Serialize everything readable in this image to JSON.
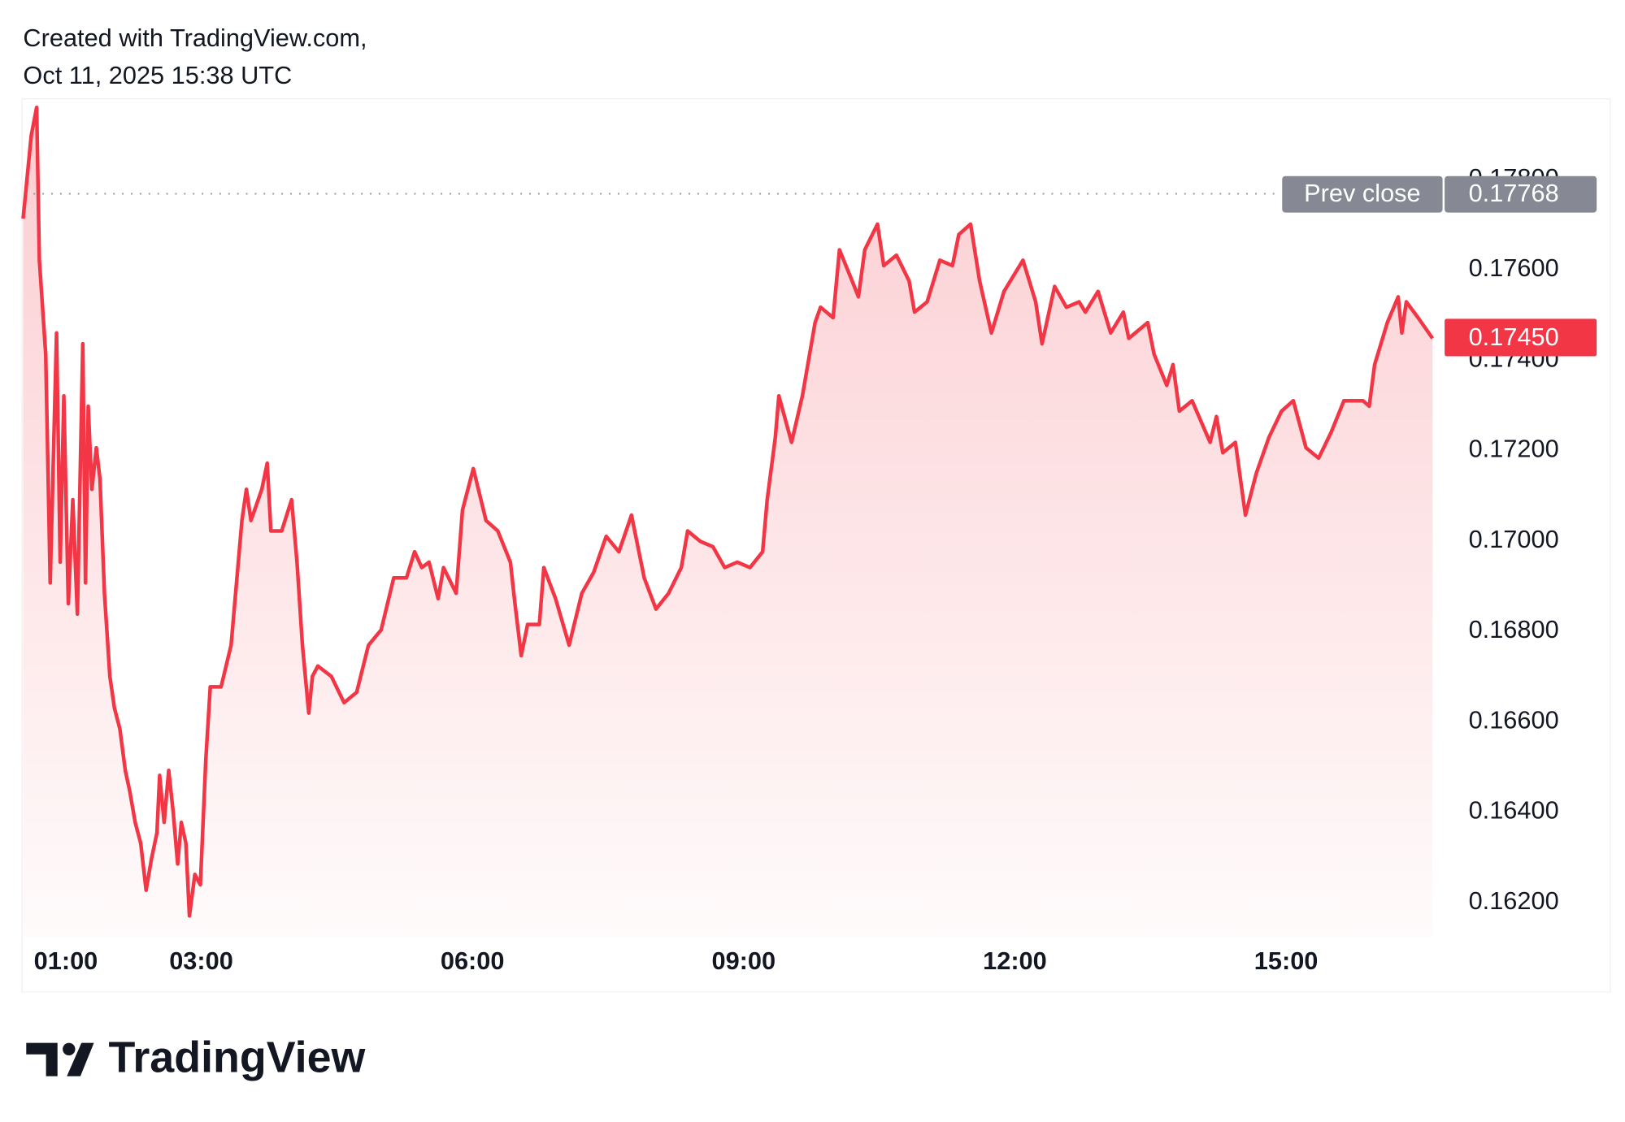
{
  "chart_data": {
    "type": "line",
    "header": [
      "Created with TradingView.com,",
      "Oct 11, 2025 15:38 UTC"
    ],
    "brand": "TradingView",
    "color": "#f23645",
    "x": [
      1.03,
      1.12,
      1.18,
      1.21,
      1.28,
      1.33,
      1.4,
      1.44,
      1.48,
      1.53,
      1.58,
      1.63,
      1.69,
      1.72,
      1.75,
      1.79,
      1.84,
      1.88,
      1.93,
      1.99,
      2.04,
      2.1,
      2.16,
      2.21,
      2.27,
      2.33,
      2.39,
      2.45,
      2.51,
      2.54,
      2.59,
      2.64,
      2.69,
      2.74,
      2.78,
      2.83,
      2.87,
      2.93,
      2.99,
      3.05,
      3.1,
      3.22,
      3.33,
      3.39,
      3.45,
      3.5,
      3.55,
      3.67,
      3.73,
      3.77,
      3.89,
      4.0,
      4.06,
      4.12,
      4.19,
      4.23,
      4.29,
      4.44,
      4.58,
      4.72,
      4.85,
      4.99,
      5.13,
      5.27,
      5.36,
      5.44,
      5.52,
      5.62,
      5.68,
      5.82,
      5.89,
      6.01,
      6.15,
      6.28,
      6.42,
      6.47,
      6.54,
      6.61,
      6.74,
      6.79,
      6.92,
      7.07,
      7.21,
      7.34,
      7.48,
      7.62,
      7.76,
      7.9,
      8.03,
      8.17,
      8.31,
      8.38,
      8.52,
      8.66,
      8.79,
      8.93,
      9.07,
      9.21,
      9.26,
      9.35,
      9.39,
      9.53,
      9.65,
      9.79,
      9.85,
      9.99,
      10.06,
      10.2,
      10.27,
      10.34,
      10.48,
      10.55,
      10.69,
      10.83,
      10.89,
      11.03,
      11.17,
      11.31,
      11.38,
      11.51,
      11.61,
      11.74,
      11.88,
      12.09,
      12.23,
      12.3,
      12.44,
      12.57,
      12.71,
      12.78,
      12.92,
      13.06,
      13.2,
      13.26,
      13.47,
      13.54,
      13.68,
      13.75,
      13.82,
      13.96,
      14.16,
      14.23,
      14.3,
      14.44,
      14.55,
      14.67,
      14.81,
      14.95,
      15.08,
      15.22,
      15.36,
      15.5,
      15.64,
      15.85,
      15.92,
      15.98,
      16.12,
      16.24,
      16.28,
      16.33,
      16.46,
      16.62
    ],
    "values": [
      0.17713,
      0.17897,
      0.17959,
      0.17621,
      0.17413,
      0.16907,
      0.1746,
      0.16953,
      0.17321,
      0.16861,
      0.17091,
      0.16838,
      0.17436,
      0.16907,
      0.17298,
      0.17114,
      0.17206,
      0.17137,
      0.16884,
      0.167,
      0.1663,
      0.16584,
      0.16492,
      0.16446,
      0.16377,
      0.16331,
      0.16227,
      0.16297,
      0.16354,
      0.16481,
      0.16377,
      0.16492,
      0.164,
      0.16285,
      0.16377,
      0.16331,
      0.1617,
      0.16262,
      0.16239,
      0.16515,
      0.16677,
      0.16677,
      0.16769,
      0.16907,
      0.17045,
      0.17114,
      0.17045,
      0.17114,
      0.17172,
      0.17022,
      0.17022,
      0.17091,
      0.16953,
      0.16769,
      0.16619,
      0.167,
      0.16723,
      0.167,
      0.16642,
      0.16665,
      0.16769,
      0.16803,
      0.16918,
      0.16918,
      0.16976,
      0.16941,
      0.16953,
      0.16872,
      0.16941,
      0.16884,
      0.17068,
      0.1716,
      0.17045,
      0.17022,
      0.16953,
      0.16861,
      0.16746,
      0.16815,
      0.16815,
      0.16941,
      0.16872,
      0.16769,
      0.16884,
      0.1693,
      0.1701,
      0.16976,
      0.17057,
      0.16918,
      0.16849,
      0.16884,
      0.16941,
      0.17022,
      0.16999,
      0.16987,
      0.16941,
      0.16953,
      0.16941,
      0.16976,
      0.17091,
      0.17229,
      0.17321,
      0.17218,
      0.17321,
      0.17483,
      0.17517,
      0.17494,
      0.17644,
      0.17575,
      0.1754,
      0.17644,
      0.17701,
      0.17609,
      0.17632,
      0.17575,
      0.17506,
      0.17529,
      0.17621,
      0.17609,
      0.17678,
      0.17701,
      0.17575,
      0.1746,
      0.17552,
      0.17621,
      0.17529,
      0.17436,
      0.17563,
      0.17517,
      0.17529,
      0.17506,
      0.17552,
      0.1746,
      0.17506,
      0.17448,
      0.17483,
      0.17413,
      0.17344,
      0.1739,
      0.17287,
      0.1731,
      0.17218,
      0.17275,
      0.17195,
      0.17218,
      0.17057,
      0.17149,
      0.17229,
      0.17287,
      0.1731,
      0.17206,
      0.17183,
      0.17241,
      0.1731,
      0.1731,
      0.17298,
      0.1739,
      0.17483,
      0.1754,
      0.1746,
      0.17529,
      0.17494,
      0.17448
    ],
    "xlim": [
      1.03,
      16.65
    ],
    "xticks": [
      {
        "value": 1,
        "label": "01:00"
      },
      {
        "value": 3,
        "label": "03:00"
      },
      {
        "value": 6,
        "label": "06:00"
      },
      {
        "value": 9,
        "label": "09:00"
      },
      {
        "value": 12,
        "label": "12:00"
      },
      {
        "value": 15,
        "label": "15:00"
      }
    ],
    "ylim": [
      0.16124,
      0.17978
    ],
    "yticks": [
      {
        "value": 0.162,
        "label": "0.16200"
      },
      {
        "value": 0.164,
        "label": "0.16400"
      },
      {
        "value": 0.166,
        "label": "0.16600"
      },
      {
        "value": 0.168,
        "label": "0.16800"
      },
      {
        "value": 0.17,
        "label": "0.17000"
      },
      {
        "value": 0.172,
        "label": "0.17200"
      },
      {
        "value": 0.174,
        "label": "0.17400"
      },
      {
        "value": 0.176,
        "label": "0.17600"
      },
      {
        "value": 0.178,
        "label": "0.17800"
      }
    ],
    "prev_close": {
      "name": "Prev close",
      "value": 0.17768,
      "color": "#868993"
    },
    "last_price": {
      "value": 0.1745,
      "label": "0.17450"
    }
  }
}
